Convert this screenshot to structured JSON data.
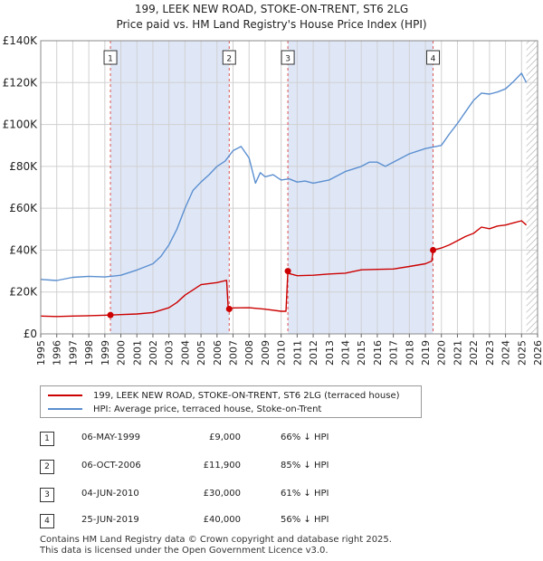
{
  "title": {
    "line1": "199, LEEK NEW ROAD, STOKE-ON-TRENT, ST6 2LG",
    "line2": "Price paid vs. HM Land Registry's House Price Index (HPI)"
  },
  "colors": {
    "price": "#cc0000",
    "hpi": "#5b8fd0",
    "shade": "#dfe7f7",
    "grid": "#d0d0d0"
  },
  "chart_data": {
    "type": "line",
    "xlim": [
      1995,
      2026
    ],
    "ylim": [
      0,
      140000
    ],
    "y_ticks": [
      0,
      20000,
      40000,
      60000,
      80000,
      100000,
      120000,
      140000
    ],
    "y_tick_labels": [
      "£0",
      "£20K",
      "£40K",
      "£60K",
      "£80K",
      "£100K",
      "£120K",
      "£140K"
    ],
    "x_ticks": [
      "1995",
      "1996",
      "1997",
      "1998",
      "1999",
      "2000",
      "2001",
      "2002",
      "2003",
      "2004",
      "2005",
      "2006",
      "2007",
      "2008",
      "2009",
      "2010",
      "2011",
      "2012",
      "2013",
      "2014",
      "2015",
      "2016",
      "2017",
      "2018",
      "2019",
      "2020",
      "2021",
      "2022",
      "2023",
      "2024",
      "2025",
      "2026"
    ],
    "shaded_spans": [
      [
        1999.35,
        2006.76
      ],
      [
        2010.42,
        2019.48
      ]
    ],
    "hatch_from": 2025.3,
    "sales": [
      {
        "label": "1",
        "x": 1999.35,
        "value": 9000
      },
      {
        "label": "2",
        "x": 2006.76,
        "value": 11900
      },
      {
        "label": "3",
        "x": 2010.42,
        "value": 30000
      },
      {
        "label": "4",
        "x": 2019.48,
        "value": 40000
      }
    ],
    "series": [
      {
        "name": "199, LEEK NEW ROAD, STOKE-ON-TRENT, ST6 2LG (terraced house)",
        "color": "#cc0000",
        "x": [
          1995.0,
          1996,
          1997,
          1998,
          1999.35,
          2000,
          2001,
          2002,
          2003,
          2003.5,
          2004,
          2004.5,
          2005,
          2006,
          2006.6,
          2006.7,
          2006.76,
          2007,
          2008,
          2009,
          2010.0,
          2010.3,
          2010.42,
          2010.5,
          2011,
          2012,
          2013,
          2014,
          2015,
          2016,
          2017,
          2018,
          2019.0,
          2019.4,
          2019.48,
          2020,
          2020.5,
          2021,
          2021.5,
          2022,
          2022.5,
          2023,
          2023.5,
          2024,
          2024.5,
          2025,
          2025.3
        ],
        "y": [
          8500,
          8300,
          8500,
          8700,
          9000,
          9200,
          9500,
          10200,
          12500,
          15000,
          18500,
          21000,
          23500,
          24500,
          25600,
          11800,
          11900,
          12400,
          12500,
          11800,
          10800,
          10800,
          30000,
          28800,
          27800,
          28000,
          28600,
          29000,
          30600,
          30800,
          31000,
          32200,
          33500,
          34800,
          40000,
          41000,
          42500,
          44500,
          46500,
          48000,
          51000,
          50200,
          51500,
          52000,
          53000,
          54000,
          52000
        ]
      },
      {
        "name": "HPI: Average price, terraced house, Stoke-on-Trent",
        "color": "#5b8fd0",
        "x": [
          1995.0,
          1996,
          1997,
          1998,
          1999,
          2000,
          2001,
          2002,
          2002.5,
          2003,
          2003.5,
          2004,
          2004.5,
          2005,
          2005.5,
          2006,
          2006.5,
          2007,
          2007.5,
          2008,
          2008.4,
          2008.7,
          2009,
          2009.5,
          2010,
          2010.5,
          2011,
          2011.5,
          2012,
          2013,
          2014,
          2015,
          2015.5,
          2016,
          2016.5,
          2017,
          2018,
          2019,
          2020,
          2020.5,
          2021,
          2021.5,
          2022,
          2022.5,
          2023,
          2023.5,
          2024,
          2024.5,
          2025,
          2025.3
        ],
        "y": [
          26000,
          25500,
          27000,
          27500,
          27200,
          28000,
          30500,
          33500,
          37000,
          42500,
          50000,
          60000,
          68500,
          72500,
          76000,
          80000,
          82500,
          87500,
          89500,
          84000,
          72000,
          77000,
          75000,
          76000,
          73500,
          74000,
          72500,
          73000,
          72000,
          73500,
          77500,
          80000,
          82000,
          82000,
          80000,
          82000,
          86000,
          88500,
          90000,
          95500,
          100500,
          106000,
          111500,
          115000,
          114500,
          115500,
          117000,
          120500,
          124500,
          120000
        ]
      }
    ]
  },
  "legend": {
    "price_label": "199, LEEK NEW ROAD, STOKE-ON-TRENT, ST6 2LG (terraced house)",
    "hpi_label": "HPI: Average price, terraced house, Stoke-on-Trent"
  },
  "transactions": [
    {
      "num": "1",
      "date": "06-MAY-1999",
      "price": "£9,000",
      "hpi": "66% ↓ HPI"
    },
    {
      "num": "2",
      "date": "06-OCT-2006",
      "price": "£11,900",
      "hpi": "85% ↓ HPI"
    },
    {
      "num": "3",
      "date": "04-JUN-2010",
      "price": "£30,000",
      "hpi": "61% ↓ HPI"
    },
    {
      "num": "4",
      "date": "25-JUN-2019",
      "price": "£40,000",
      "hpi": "56% ↓ HPI"
    }
  ],
  "footer": {
    "line1": "Contains HM Land Registry data © Crown copyright and database right 2025.",
    "line2": "This data is licensed under the Open Government Licence v3.0."
  }
}
